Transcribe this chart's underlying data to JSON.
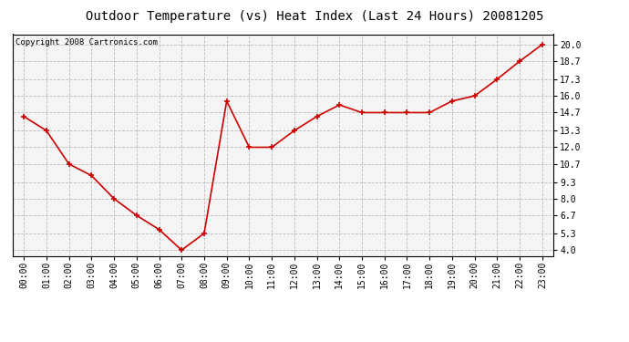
{
  "title": "Outdoor Temperature (vs) Heat Index (Last 24 Hours) 20081205",
  "copyright_text": "Copyright 2008 Cartronics.com",
  "x_labels": [
    "00:00",
    "01:00",
    "02:00",
    "03:00",
    "04:00",
    "05:00",
    "06:00",
    "07:00",
    "08:00",
    "09:00",
    "10:00",
    "11:00",
    "12:00",
    "13:00",
    "14:00",
    "15:00",
    "16:00",
    "17:00",
    "18:00",
    "19:00",
    "20:00",
    "21:00",
    "22:00",
    "23:00"
  ],
  "y_values": [
    14.4,
    13.3,
    10.7,
    9.8,
    8.0,
    6.7,
    5.6,
    4.0,
    5.3,
    15.6,
    12.0,
    12.0,
    13.3,
    14.4,
    15.3,
    14.7,
    14.7,
    14.7,
    14.7,
    15.6,
    16.0,
    17.3,
    18.7,
    20.0
  ],
  "y_ticks": [
    4.0,
    5.3,
    6.7,
    8.0,
    9.3,
    10.7,
    12.0,
    13.3,
    14.7,
    16.0,
    17.3,
    18.7,
    20.0
  ],
  "ylim": [
    3.5,
    20.8
  ],
  "line_color": "#cc0000",
  "marker_color": "#cc0000",
  "bg_color": "#ffffff",
  "plot_bg_color": "#f5f5f5",
  "grid_color": "#bbbbbb",
  "title_fontsize": 10,
  "tick_fontsize": 7,
  "copyright_fontsize": 6.5
}
